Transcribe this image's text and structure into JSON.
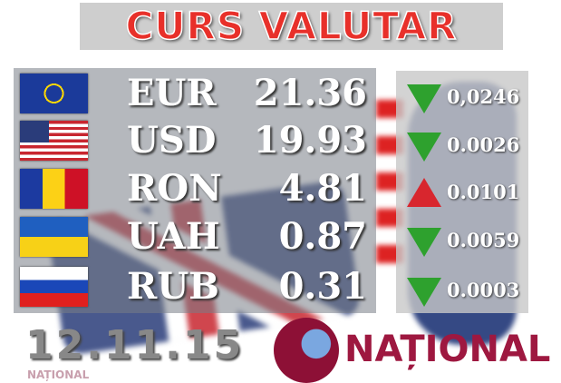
{
  "title": "CURS VALUTAR",
  "date": "12.11.15",
  "brand": "NAȚIONAL",
  "watermark": "NAȚIONAL",
  "colors": {
    "down": "#2ea12e",
    "up": "#d8262e",
    "title": "#e8302a",
    "brand": "#9e1840"
  },
  "rates": [
    {
      "code": "EUR",
      "value": "21.36",
      "change": "0,0246",
      "direction": "down",
      "flag": "eu-flag"
    },
    {
      "code": "USD",
      "value": "19.93",
      "change": "0.0026",
      "direction": "down",
      "flag": "us-flag"
    },
    {
      "code": "RON",
      "value": "4.81",
      "change": "0.0101",
      "direction": "up",
      "flag": "ro-flag"
    },
    {
      "code": "UAH",
      "value": "0.87",
      "change": "0.0059",
      "direction": "down",
      "flag": "ua-flag"
    },
    {
      "code": "RUB",
      "value": "0.31",
      "change": "0.0003",
      "direction": "down",
      "flag": "ru-flag"
    }
  ]
}
